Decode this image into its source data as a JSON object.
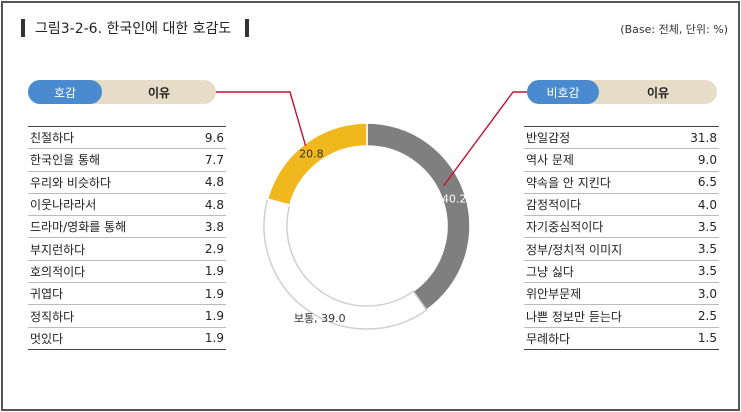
{
  "title": "그림3-2-6. 한국인에 대한 호감도",
  "unit_note": "(Base: 전체, 단위: %)",
  "left_pill": {
    "label": "호감",
    "reason": "이유"
  },
  "right_pill": {
    "label": "비호감",
    "reason": "이유"
  },
  "chart_data": {
    "type": "pie",
    "style": "donut",
    "slices": [
      {
        "label": "",
        "value": 40.2,
        "display": "40.2",
        "color": "#7f7f7f"
      },
      {
        "label": "보통",
        "value": 39.0,
        "display": "보통, 39.0",
        "color": "#ffffff"
      },
      {
        "label": "",
        "value": 20.8,
        "display": "20.8",
        "color": "#f0b81c"
      }
    ]
  },
  "positive_reasons": [
    {
      "label": "친절하다",
      "value": "9.6"
    },
    {
      "label": "한국인을 통해",
      "value": "7.7"
    },
    {
      "label": "우리와 비슷하다",
      "value": "4.8"
    },
    {
      "label": "이웃나라라서",
      "value": "4.8"
    },
    {
      "label": "드라마/영화를 통해",
      "value": "3.8"
    },
    {
      "label": "부지런하다",
      "value": "2.9"
    },
    {
      "label": "호의적이다",
      "value": "1.9"
    },
    {
      "label": "귀엽다",
      "value": "1.9"
    },
    {
      "label": "정직하다",
      "value": "1.9"
    },
    {
      "label": "멋있다",
      "value": "1.9"
    }
  ],
  "negative_reasons": [
    {
      "label": "반일감정",
      "value": "31.8"
    },
    {
      "label": "역사 문제",
      "value": "9.0"
    },
    {
      "label": "약속을 안 지킨다",
      "value": "6.5"
    },
    {
      "label": "감정적이다",
      "value": "4.0"
    },
    {
      "label": "자기중심적이다",
      "value": "3.5"
    },
    {
      "label": "정부/정치적 이미지",
      "value": "3.5"
    },
    {
      "label": "그냥 싫다",
      "value": "3.5"
    },
    {
      "label": "위안부문제",
      "value": "3.0"
    },
    {
      "label": "나쁜 정보만 듣는다",
      "value": "2.5"
    },
    {
      "label": "무례하다",
      "value": "1.5"
    }
  ]
}
